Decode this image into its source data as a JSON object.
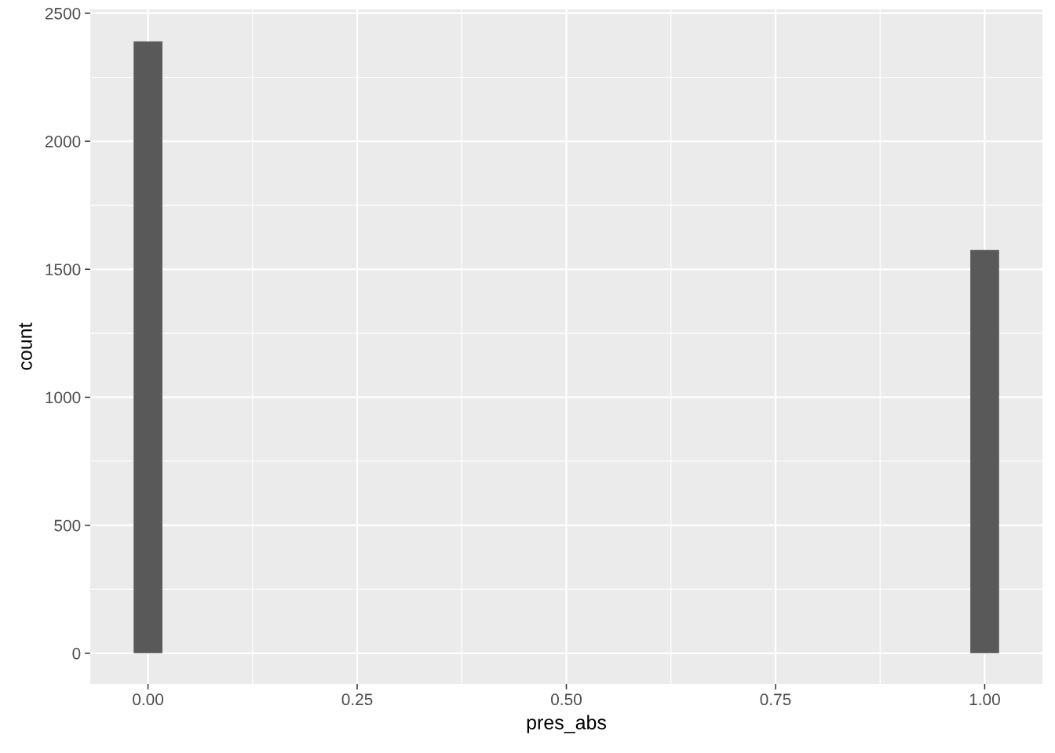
{
  "chart_data": {
    "type": "histogram",
    "xlabel": "pres_abs",
    "ylabel": "count",
    "bins": [
      -0.0172,
      0.0172,
      0.9828,
      1.0172
    ],
    "values": [
      2390,
      0,
      1575
    ],
    "color": "#595959",
    "xlim": [
      -0.069,
      1.069
    ],
    "xticks": [
      {
        "value": 0,
        "label": "0.00"
      },
      {
        "value": 0.25,
        "label": "0.25"
      },
      {
        "value": 0.5,
        "label": "0.50"
      },
      {
        "value": 0.75,
        "label": "0.75"
      },
      {
        "value": 1,
        "label": "1.00"
      }
    ],
    "ylim": [
      -120,
      2515
    ],
    "yticks": [
      0,
      500,
      1000,
      1500,
      2000,
      2500
    ],
    "grid": true
  }
}
